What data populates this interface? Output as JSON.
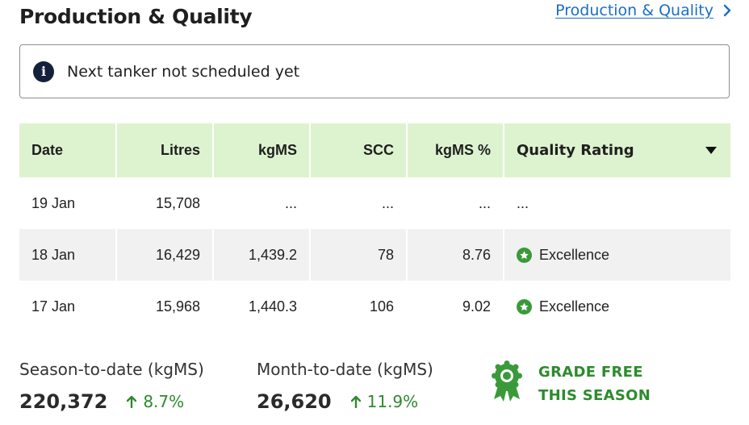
{
  "header": {
    "title": "Production & Quality",
    "link_label": "Production & Quality"
  },
  "alert": {
    "message": "Next tanker not scheduled yet"
  },
  "table": {
    "columns": [
      "Date",
      "Litres",
      "kgMS",
      "SCC",
      "kgMS %",
      "Quality Rating"
    ],
    "rows": [
      {
        "date": "19 Jan",
        "litres": "15,708",
        "kgms": "...",
        "scc": "...",
        "kgms_pct": "...",
        "rating": "..."
      },
      {
        "date": "18 Jan",
        "litres": "16,429",
        "kgms": "1,439.2",
        "scc": "78",
        "kgms_pct": "8.76",
        "rating": "Excellence"
      },
      {
        "date": "17 Jan",
        "litres": "15,968",
        "kgms": "1,440.3",
        "scc": "106",
        "kgms_pct": "9.02",
        "rating": "Excellence"
      }
    ]
  },
  "stats": {
    "season": {
      "label": "Season-to-date (kgMS)",
      "value": "220,372",
      "change": "8.7%"
    },
    "month": {
      "label": "Month-to-date (kgMS)",
      "value": "26,620",
      "change": "11.9%"
    }
  },
  "grade": {
    "line1": "GRADE FREE",
    "line2": "THIS SEASON"
  },
  "colors": {
    "header_bg": "#ddf3cf",
    "link": "#1a6fc4",
    "accent_green": "#2e8b2e",
    "info_icon_bg": "#15203b"
  }
}
